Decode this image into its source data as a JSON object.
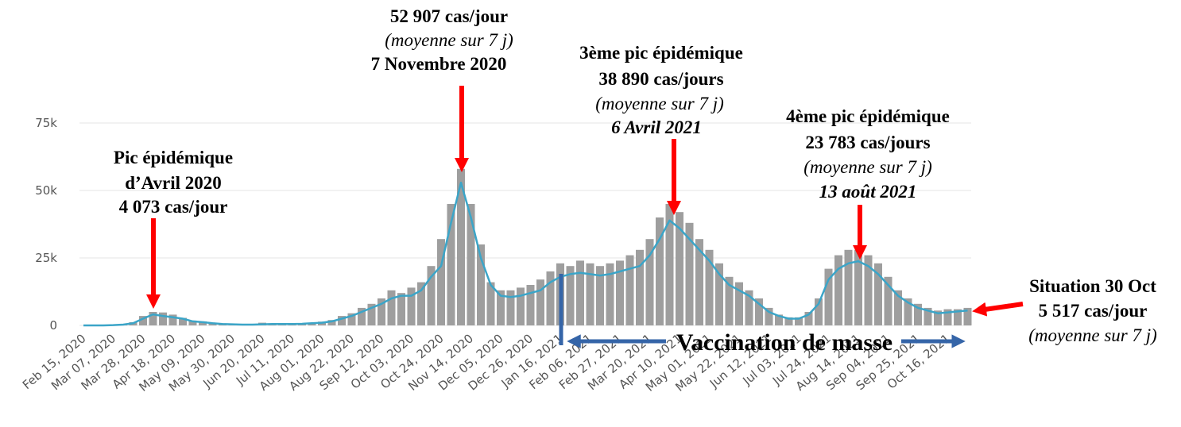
{
  "chart_data": {
    "type": "bar_line",
    "categories": [
      "Feb 15, 2020",
      null,
      null,
      "Mar 07, 2020",
      null,
      null,
      "Mar 28, 2020",
      null,
      null,
      "Apr 18, 2020",
      null,
      null,
      "May 09, 2020",
      null,
      null,
      "May 30, 2020",
      null,
      null,
      "Jun 20, 2020",
      null,
      null,
      "Jul 11, 2020",
      null,
      null,
      "Aug 01, 2020",
      null,
      null,
      "Aug 22, 2020",
      null,
      null,
      "Sep 12, 2020",
      null,
      null,
      "Oct 03, 2020",
      null,
      null,
      "Oct 24, 2020",
      null,
      null,
      "Nov 14, 2020",
      null,
      null,
      "Dec 05, 2020",
      null,
      null,
      "Dec 26, 2020",
      null,
      null,
      "Jan 16, 2021",
      null,
      null,
      "Feb 06, 2021",
      null,
      null,
      "Feb 27, 2021",
      null,
      null,
      "Mar 20, 2021",
      null,
      null,
      "Apr 10, 2021",
      null,
      null,
      "May 01, 2021",
      null,
      null,
      "May 22, 2021",
      null,
      null,
      "Jun 12, 2021",
      null,
      null,
      "Jul 03, 2021",
      null,
      null,
      "Jul 24, 2021",
      null,
      null,
      "Aug 14, 2021",
      null,
      null,
      "Sep 04, 2021",
      null,
      null,
      "Sep 25, 2021",
      null,
      null,
      "Oct 16, 2021",
      null,
      null
    ],
    "series": [
      {
        "kind": "bar",
        "color": "#9e9e9e",
        "values": [
          0,
          0,
          50,
          200,
          500,
          1200,
          3500,
          5000,
          4800,
          4000,
          2800,
          1800,
          1500,
          1000,
          700,
          500,
          400,
          300,
          1000,
          600,
          600,
          700,
          800,
          1000,
          1400,
          2000,
          3500,
          4500,
          6500,
          8000,
          10000,
          13000,
          12000,
          14000,
          16000,
          22000,
          32000,
          45000,
          58000,
          45000,
          30000,
          16000,
          13000,
          13000,
          14000,
          15000,
          17000,
          20000,
          23000,
          22000,
          24000,
          23000,
          22000,
          23000,
          24000,
          26000,
          28000,
          32000,
          40000,
          45000,
          42000,
          38000,
          32000,
          28000,
          23000,
          18000,
          16000,
          13000,
          10000,
          6500,
          4000,
          3000,
          3000,
          5000,
          10000,
          21000,
          26000,
          28000,
          28000,
          26000,
          23000,
          18000,
          13000,
          10000,
          8000,
          6500,
          5500,
          6000,
          6000,
          6500
        ]
      },
      {
        "kind": "line",
        "color": "#3ba5c8",
        "values": [
          0,
          0,
          0,
          100,
          300,
          800,
          2500,
          4073,
          3500,
          3000,
          2500,
          1500,
          1200,
          800,
          500,
          400,
          300,
          300,
          400,
          500,
          500,
          500,
          600,
          800,
          1000,
          1500,
          2500,
          3500,
          5000,
          6500,
          8000,
          10000,
          11000,
          11000,
          13000,
          18000,
          22000,
          38000,
          52907,
          40000,
          25000,
          15000,
          11000,
          10500,
          11000,
          12000,
          13000,
          16000,
          18000,
          19000,
          19500,
          19000,
          18500,
          19000,
          20000,
          21000,
          22000,
          26000,
          32000,
          38890,
          36000,
          32000,
          28000,
          24000,
          19000,
          15000,
          13000,
          11000,
          8000,
          5000,
          3500,
          2500,
          2500,
          4000,
          8000,
          17000,
          21000,
          23000,
          23783,
          22000,
          19000,
          15000,
          11000,
          8500,
          6500,
          5500,
          4500,
          4800,
          5200,
          5517
        ]
      }
    ],
    "ylim": [
      0,
      80000
    ],
    "yticks": [
      0,
      {
        "value": 25000,
        "label": "25k"
      },
      {
        "value": 50000,
        "label": "50k"
      },
      {
        "value": 75000,
        "label": "75k"
      }
    ],
    "grid": true,
    "annotations": [
      [
        "Pic épidémique",
        "d’Avril 2020",
        "4 073 cas/jour"
      ],
      [
        "52 907 cas/jour",
        "(moyenne sur 7 j)",
        "7 Novembre 2020"
      ],
      [
        "3ème pic épidémique",
        "38 890 cas/jours",
        "(moyenne sur 7 j)",
        "6 Avril 2021"
      ],
      [
        "4ème pic épidémique",
        "23 783 cas/jours",
        "(moyenne sur 7 j)",
        "13 août 2021"
      ],
      [
        "Situation 30 Oct",
        "5 517 cas/jour",
        "(moyenne sur 7 j)"
      ]
    ],
    "vaccination_label": "Vaccination de masse"
  }
}
